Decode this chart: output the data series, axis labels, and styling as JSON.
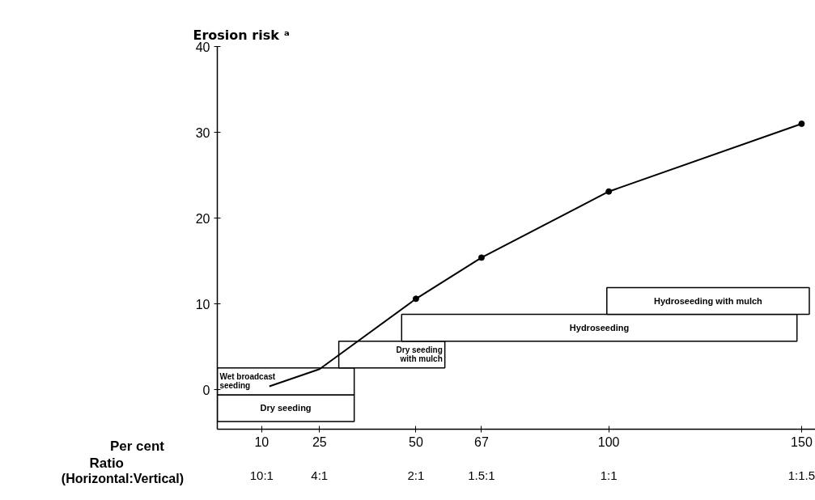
{
  "chart_data": {
    "type": "line",
    "ylabel": "Erosion risk ᵃ",
    "xlabel": "Per cent",
    "x2label": "Ratio (Horizontal:Vertical)",
    "xlim": [
      -1.5,
      154
    ],
    "xticks": [
      10,
      25,
      50,
      67,
      100,
      150
    ],
    "annotations": [
      "10:1",
      "4:1",
      "2:1",
      "1.5:1",
      "1:1",
      "1:1.5"
    ],
    "ylim": [
      -4.6,
      40
    ],
    "yticks": [
      0,
      10,
      20,
      30,
      40
    ],
    "grid": false,
    "series": [
      {
        "color": "#000000",
        "marker": "none",
        "x": [
          12,
          25,
          50,
          67,
          100,
          150
        ],
        "values": [
          0.4,
          2.4,
          10.6,
          15.4,
          23.1,
          31.0
        ]
      },
      {
        "type": "scatter",
        "color": "#000000",
        "marker": "circle",
        "x": [
          50,
          67,
          100,
          150
        ],
        "values": [
          10.6,
          15.4,
          23.1,
          31.0
        ]
      }
    ],
    "bands": [
      {
        "axis": "x",
        "from": -1.5,
        "to": 34,
        "label": "Dry seeding"
      },
      {
        "axis": "x",
        "from": -1.5,
        "to": 34,
        "label": "Wet broadcast seeding"
      },
      {
        "axis": "x",
        "from": 30,
        "to": 57.5,
        "label": "Dry seeding with mulch"
      },
      {
        "axis": "x",
        "from": 46.3,
        "to": 148.8,
        "label": "Hydroseeding"
      },
      {
        "axis": "x",
        "from": 99.5,
        "to": 152,
        "label": "Hydroseeding with mulch"
      }
    ]
  }
}
